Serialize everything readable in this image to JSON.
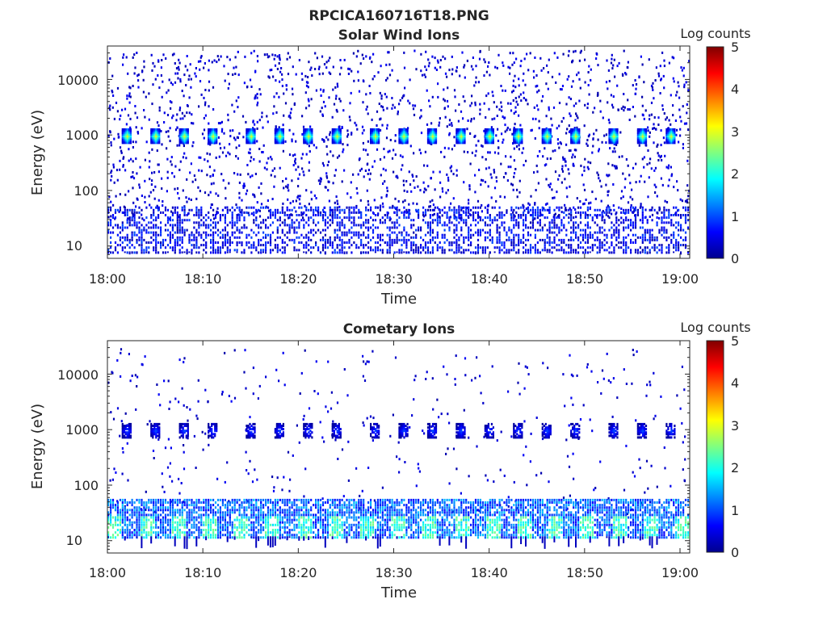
{
  "figure": {
    "filename": "RPCICA160716T18.PNG"
  },
  "chart_data": [
    {
      "type": "heatmap",
      "title": "Solar Wind Ions",
      "xlabel": "Time",
      "ylabel": "Energy (eV)",
      "x_ticks": [
        "18:00",
        "18:10",
        "18:20",
        "18:30",
        "18:40",
        "18:50",
        "19:00"
      ],
      "xlim": [
        "18:00",
        "19:01"
      ],
      "y_scale": "log",
      "y_ticks": [
        "10",
        "100",
        "1000",
        "10000"
      ],
      "ylim": [
        6,
        40000
      ],
      "colorbar": {
        "label": "Log counts",
        "ticks": [
          "0",
          "1",
          "2",
          "3",
          "4",
          "5"
        ],
        "range": [
          0,
          5
        ],
        "colormap": "jet"
      },
      "features": {
        "periodic_beam_energy_eV": 1000,
        "beam_peak_log_counts": 3,
        "beam_times": [
          "18:02",
          "18:05",
          "18:08",
          "18:11",
          "18:15",
          "18:18",
          "18:21",
          "18:24",
          "18:28",
          "18:31",
          "18:34",
          "18:37",
          "18:40",
          "18:43",
          "18:46",
          "18:49",
          "18:53",
          "18:56",
          "18:59"
        ],
        "low_energy_band_eV": [
          8,
          55
        ],
        "background": "sparse single counts from 30 to 35000 eV"
      }
    },
    {
      "type": "heatmap",
      "title": "Cometary Ions",
      "xlabel": "Time",
      "ylabel": "Energy (eV)",
      "x_ticks": [
        "18:00",
        "18:10",
        "18:20",
        "18:30",
        "18:40",
        "18:50",
        "19:00"
      ],
      "xlim": [
        "18:00",
        "19:01"
      ],
      "y_scale": "log",
      "y_ticks": [
        "10",
        "100",
        "1000",
        "10000"
      ],
      "ylim": [
        6,
        40000
      ],
      "colorbar": {
        "label": "Log counts",
        "ticks": [
          "0",
          "1",
          "2",
          "3",
          "4",
          "5"
        ],
        "range": [
          0,
          5
        ],
        "colormap": "jet"
      },
      "features": {
        "periodic_beam_energy_eV": 1000,
        "beam_peak_log_counts": 1,
        "beam_times": [
          "18:02",
          "18:05",
          "18:08",
          "18:11",
          "18:15",
          "18:18",
          "18:21",
          "18:24",
          "18:28",
          "18:31",
          "18:34",
          "18:37",
          "18:40",
          "18:43",
          "18:46",
          "18:49",
          "18:53",
          "18:56",
          "18:59"
        ],
        "low_energy_band_eV": [
          12,
          60
        ],
        "low_energy_peak_log_counts": 2.3,
        "background": "sparse single counts from 30 to 30000 eV"
      }
    }
  ]
}
